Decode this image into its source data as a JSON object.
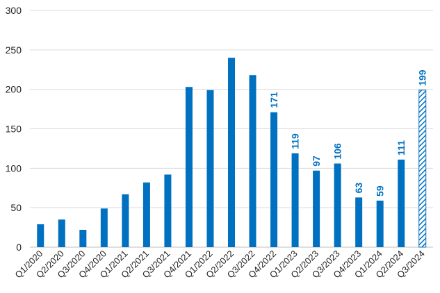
{
  "chart_data": {
    "type": "bar",
    "title": "",
    "xlabel": "",
    "ylabel": "",
    "ylim": [
      0,
      300
    ],
    "yticks": [
      0,
      50,
      100,
      150,
      200,
      250,
      300
    ],
    "grid": true,
    "categories": [
      "Q1/2020",
      "Q2/2020",
      "Q3/2020",
      "Q4/2020",
      "Q1/2021",
      "Q2/2021",
      "Q3/2021",
      "Q4/2021",
      "Q1/2022",
      "Q2/2022",
      "Q3/2022",
      "Q4/2022",
      "Q1/2023",
      "Q2/2023",
      "Q3/2023",
      "Q4/2023",
      "Q1/2024",
      "Q2/2024",
      "Q3/2024"
    ],
    "values": [
      29,
      35,
      22,
      49,
      67,
      82,
      92,
      203,
      199,
      240,
      218,
      171,
      119,
      97,
      106,
      63,
      59,
      111,
      199
    ],
    "data_labels": [
      "",
      "",
      "",
      "",
      "",
      "",
      "",
      "",
      "",
      "",
      "",
      "171",
      "119",
      "97",
      "106",
      "63",
      "59",
      "111",
      "199"
    ],
    "hatched": [
      false,
      false,
      false,
      false,
      false,
      false,
      false,
      false,
      false,
      false,
      false,
      false,
      false,
      false,
      false,
      false,
      false,
      false,
      true
    ],
    "colors": {
      "bar": "#0070c0",
      "label": "#0070c0"
    }
  }
}
